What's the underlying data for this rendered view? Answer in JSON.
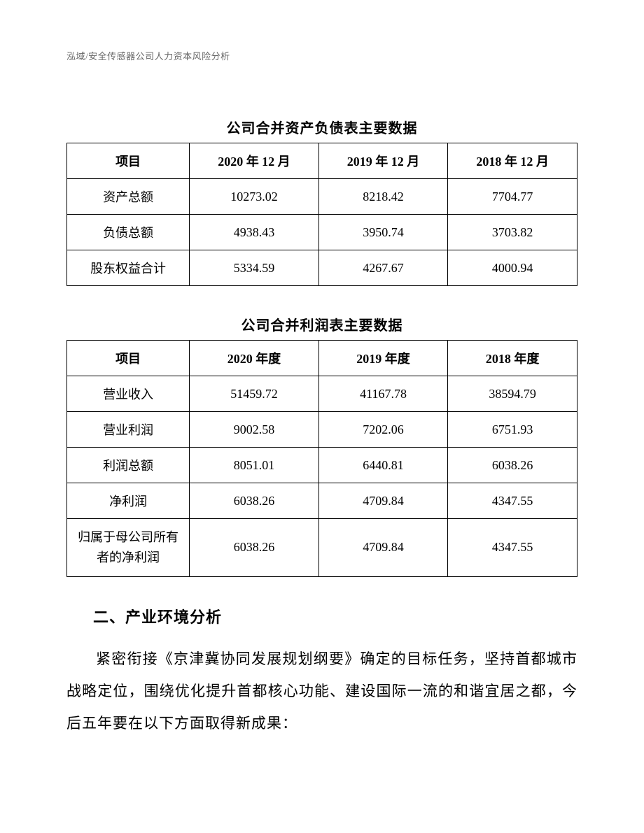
{
  "header": "泓域/安全传感器公司人力资本风险分析",
  "table1": {
    "title": "公司合并资产负债表主要数据",
    "columns": [
      "项目",
      "2020 年 12 月",
      "2019 年 12 月",
      "2018 年 12 月"
    ],
    "rows": [
      {
        "label": "资产总额",
        "values": [
          "10273.02",
          "8218.42",
          "7704.77"
        ]
      },
      {
        "label": "负债总额",
        "values": [
          "4938.43",
          "3950.74",
          "3703.82"
        ]
      },
      {
        "label": "股东权益合计",
        "values": [
          "5334.59",
          "4267.67",
          "4000.94"
        ]
      }
    ]
  },
  "table2": {
    "title": "公司合并利润表主要数据",
    "columns": [
      "项目",
      "2020 年度",
      "2019 年度",
      "2018 年度"
    ],
    "rows": [
      {
        "label": "营业收入",
        "values": [
          "51459.72",
          "41167.78",
          "38594.79"
        ]
      },
      {
        "label": "营业利润",
        "values": [
          "9002.58",
          "7202.06",
          "6751.93"
        ]
      },
      {
        "label": "利润总额",
        "values": [
          "8051.01",
          "6440.81",
          "6038.26"
        ]
      },
      {
        "label": "净利润",
        "values": [
          "6038.26",
          "4709.84",
          "4347.55"
        ]
      },
      {
        "label": "归属于母公司所有者的净利润",
        "values": [
          "6038.26",
          "4709.84",
          "4347.55"
        ]
      }
    ]
  },
  "section": {
    "heading": "二、产业环境分析",
    "paragraph": "紧密衔接《京津冀协同发展规划纲要》确定的目标任务，坚持首都城市战略定位，围绕优化提升首都核心功能、建设国际一流的和谐宜居之都，今后五年要在以下方面取得新成果："
  }
}
